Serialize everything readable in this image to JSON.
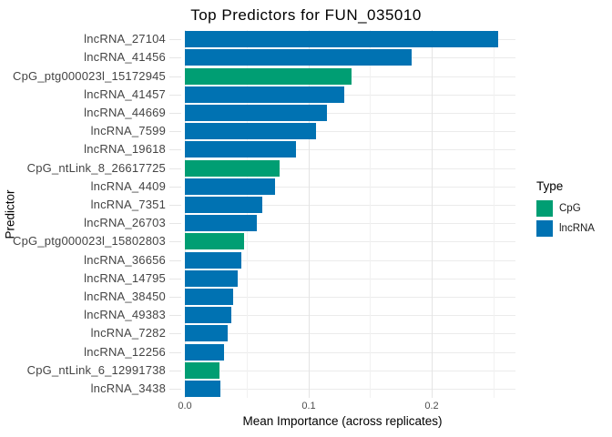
{
  "chart_data": {
    "type": "bar",
    "orientation": "horizontal",
    "title": "Top Predictors for FUN_035010",
    "xlabel": "Mean Importance (across replicates)",
    "ylabel": "Predictor",
    "xlim": [
      0,
      0.268
    ],
    "x_major_ticks": [
      0,
      0.1,
      0.2
    ],
    "x_tick_labels": [
      "0.0",
      "0.1",
      "0.2"
    ],
    "x_minor_ticks": [
      0.05,
      0.15,
      0.25
    ],
    "grid": true,
    "colors": {
      "CpG": "#009E73",
      "lncRNA": "#0072B2"
    },
    "legend": {
      "title": "Type",
      "position": "right",
      "entries": [
        {
          "label": "CpG",
          "color": "#009E73"
        },
        {
          "label": "lncRNA",
          "color": "#0072B2"
        }
      ]
    },
    "bars": [
      {
        "label": "lncRNA_27104",
        "type": "lncRNA",
        "value": 0.254
      },
      {
        "label": "lncRNA_41456",
        "type": "lncRNA",
        "value": 0.184
      },
      {
        "label": "CpG_ptg000023l_15172945",
        "type": "CpG",
        "value": 0.135
      },
      {
        "label": "lncRNA_41457",
        "type": "lncRNA",
        "value": 0.129
      },
      {
        "label": "lncRNA_44669",
        "type": "lncRNA",
        "value": 0.115
      },
      {
        "label": "lncRNA_7599",
        "type": "lncRNA",
        "value": 0.106
      },
      {
        "label": "lncRNA_19618",
        "type": "lncRNA",
        "value": 0.09
      },
      {
        "label": "CpG_ntLink_8_26617725",
        "type": "CpG",
        "value": 0.077
      },
      {
        "label": "lncRNA_4409",
        "type": "lncRNA",
        "value": 0.073
      },
      {
        "label": "lncRNA_7351",
        "type": "lncRNA",
        "value": 0.063
      },
      {
        "label": "lncRNA_26703",
        "type": "lncRNA",
        "value": 0.058
      },
      {
        "label": "CpG_ptg000023l_15802803",
        "type": "CpG",
        "value": 0.048
      },
      {
        "label": "lncRNA_36656",
        "type": "lncRNA",
        "value": 0.046
      },
      {
        "label": "lncRNA_14795",
        "type": "lncRNA",
        "value": 0.043
      },
      {
        "label": "lncRNA_38450",
        "type": "lncRNA",
        "value": 0.039
      },
      {
        "label": "lncRNA_49383",
        "type": "lncRNA",
        "value": 0.038
      },
      {
        "label": "lncRNA_7282",
        "type": "lncRNA",
        "value": 0.035
      },
      {
        "label": "lncRNA_12256",
        "type": "lncRNA",
        "value": 0.032
      },
      {
        "label": "CpG_ntLink_6_12991738",
        "type": "CpG",
        "value": 0.028
      },
      {
        "label": "lncRNA_3438",
        "type": "lncRNA",
        "value": 0.029
      }
    ]
  }
}
